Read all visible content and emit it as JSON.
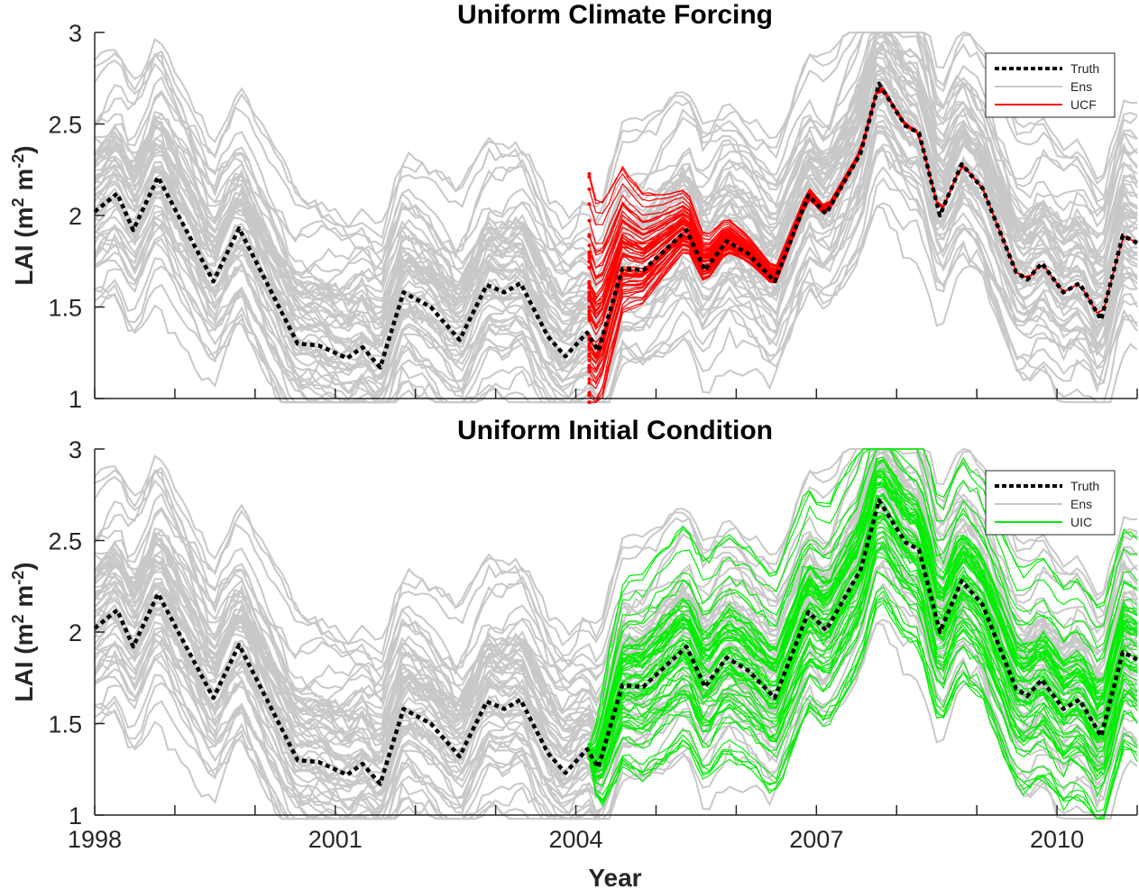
{
  "chart_data": [
    {
      "type": "line",
      "title": "Uniform Climate Forcing",
      "xlabel": "",
      "ylabel": "LAI (m² m⁻²)",
      "ylabel_parts": {
        "base": "LAI (m",
        "sup1": "2",
        "mid": " m",
        "sup2": "-2",
        "end": ")"
      },
      "xlim": [
        1998,
        2011
      ],
      "ylim": [
        1,
        3
      ],
      "yticks": [
        "1",
        "1.5",
        "2",
        "2.5",
        "3"
      ],
      "ytick_values": [
        1,
        1.5,
        2,
        2.5,
        3
      ],
      "xtick_values": [
        1998,
        1999,
        2000,
        2001,
        2002,
        2003,
        2004,
        2005,
        2006,
        2007,
        2008,
        2009,
        2010,
        2011
      ],
      "xtick_labels_shown": false,
      "legend": {
        "position": "top-right",
        "entries": [
          {
            "label": "Truth",
            "style": "dotted",
            "color": "#000000"
          },
          {
            "label": "Ens",
            "style": "solid",
            "color": "#c8c8c8"
          },
          {
            "label": "UCF",
            "style": "solid",
            "color": "#ff0000"
          }
        ]
      },
      "highlight_series": {
        "name": "UCF",
        "color": "#ff0000",
        "start_year": 2004.15,
        "mode": "converge"
      },
      "ensemble": {
        "name": "Ens",
        "color": "#c8c8c8",
        "members": 60,
        "spread_approx": 0.35
      },
      "truth": {
        "name": "Truth",
        "color": "#000000",
        "x": [
          1998.0,
          1998.28,
          1998.48,
          1998.79,
          1999.48,
          1999.8,
          2000.53,
          2000.79,
          2001.15,
          2001.34,
          2001.56,
          2001.85,
          2002.19,
          2002.55,
          2002.89,
          2003.11,
          2003.31,
          2003.65,
          2003.87,
          2004.14,
          2004.28,
          2004.58,
          2004.84,
          2005.38,
          2005.61,
          2005.88,
          2006.15,
          2006.48,
          2006.9,
          2007.12,
          2007.55,
          2007.78,
          2008.11,
          2008.28,
          2008.54,
          2008.81,
          2009.07,
          2009.49,
          2009.63,
          2009.81,
          2010.08,
          2010.28,
          2010.55,
          2010.82,
          2011.0
        ],
        "y": [
          2.02,
          2.12,
          1.92,
          2.21,
          1.64,
          1.93,
          1.3,
          1.29,
          1.22,
          1.28,
          1.17,
          1.58,
          1.5,
          1.32,
          1.62,
          1.58,
          1.63,
          1.34,
          1.23,
          1.36,
          1.26,
          1.71,
          1.7,
          1.92,
          1.7,
          1.86,
          1.79,
          1.64,
          2.11,
          2.01,
          2.34,
          2.72,
          2.49,
          2.45,
          2.0,
          2.28,
          2.15,
          1.69,
          1.65,
          1.74,
          1.58,
          1.63,
          1.43,
          1.89,
          1.85
        ]
      }
    },
    {
      "type": "line",
      "title": "Uniform Initial Condition",
      "xlabel": "Year",
      "ylabel": "LAI (m² m⁻²)",
      "ylabel_parts": {
        "base": "LAI (m",
        "sup1": "2",
        "mid": " m",
        "sup2": "-2",
        "end": ")"
      },
      "xlim": [
        1998,
        2011
      ],
      "ylim": [
        1,
        3
      ],
      "yticks": [
        "1",
        "1.5",
        "2",
        "2.5",
        "3"
      ],
      "ytick_values": [
        1,
        1.5,
        2,
        2.5,
        3
      ],
      "xtick_values": [
        1998,
        1999,
        2000,
        2001,
        2002,
        2003,
        2004,
        2005,
        2006,
        2007,
        2008,
        2009,
        2010,
        2011
      ],
      "xticks_labeled": [
        {
          "value": 1998,
          "label": "1998"
        },
        {
          "value": 2001,
          "label": "2001"
        },
        {
          "value": 2004,
          "label": "2004"
        },
        {
          "value": 2007,
          "label": "2007"
        },
        {
          "value": 2010,
          "label": "2010"
        }
      ],
      "legend": {
        "position": "top-right",
        "entries": [
          {
            "label": "Truth",
            "style": "dotted",
            "color": "#000000"
          },
          {
            "label": "Ens",
            "style": "solid",
            "color": "#c8c8c8"
          },
          {
            "label": "UIC",
            "style": "solid",
            "color": "#00ee00"
          }
        ]
      },
      "highlight_series": {
        "name": "UIC",
        "color": "#00ee00",
        "start_year": 2004.15,
        "mode": "diverge"
      },
      "ensemble": {
        "name": "Ens",
        "color": "#c8c8c8",
        "members": 60,
        "spread_approx": 0.35
      },
      "truth": {
        "name": "Truth",
        "color": "#000000",
        "x": [
          1998.0,
          1998.28,
          1998.48,
          1998.79,
          1999.48,
          1999.8,
          2000.53,
          2000.79,
          2001.15,
          2001.34,
          2001.56,
          2001.85,
          2002.19,
          2002.55,
          2002.89,
          2003.11,
          2003.31,
          2003.65,
          2003.87,
          2004.14,
          2004.28,
          2004.58,
          2004.84,
          2005.38,
          2005.61,
          2005.88,
          2006.15,
          2006.48,
          2006.9,
          2007.12,
          2007.55,
          2007.78,
          2008.11,
          2008.28,
          2008.54,
          2008.81,
          2009.07,
          2009.49,
          2009.63,
          2009.81,
          2010.08,
          2010.28,
          2010.55,
          2010.82,
          2011.0
        ],
        "y": [
          2.02,
          2.12,
          1.92,
          2.21,
          1.64,
          1.93,
          1.3,
          1.29,
          1.22,
          1.28,
          1.17,
          1.58,
          1.5,
          1.32,
          1.62,
          1.58,
          1.63,
          1.34,
          1.23,
          1.36,
          1.26,
          1.71,
          1.7,
          1.92,
          1.7,
          1.86,
          1.79,
          1.64,
          2.11,
          2.01,
          2.34,
          2.72,
          2.49,
          2.45,
          2.0,
          2.28,
          2.15,
          1.69,
          1.65,
          1.74,
          1.58,
          1.63,
          1.43,
          1.89,
          1.85
        ]
      }
    }
  ]
}
